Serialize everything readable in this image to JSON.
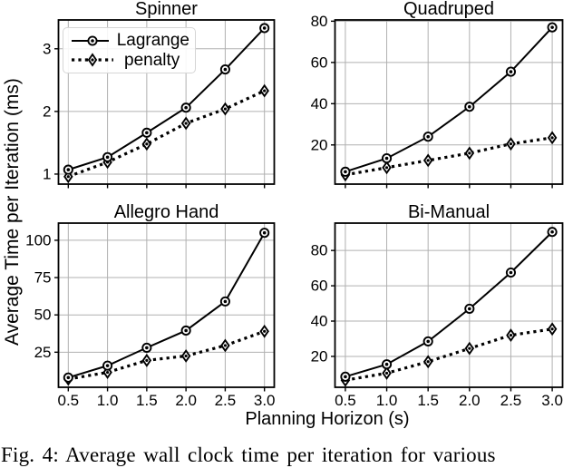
{
  "figure": {
    "ylabel": "Average Time per Iteration (ms)",
    "xlabel": "Planning Horizon (s)",
    "caption": "Fig. 4: Average wall clock time per iteration for various"
  },
  "legend": {
    "position": "upper-left-of-spinner-subplot",
    "entries": [
      {
        "label": "Lagrange",
        "line_style": "solid",
        "marker": "circle"
      },
      {
        "label": "penalty",
        "line_style": "dotted",
        "marker": "thin-diamond"
      }
    ]
  },
  "colors": {
    "line": "#000000",
    "grid": "#b0b0b0",
    "text": "#000000",
    "background": "#ffffff",
    "legend_border": "#d5d5d5",
    "marker_face": "#ffffff"
  },
  "chart_data": [
    {
      "type": "line",
      "title": "Spinner",
      "x": [
        0.5,
        1.0,
        1.5,
        2.0,
        2.5,
        3.0
      ],
      "xticklabels": [
        "0.5",
        "1.0",
        "1.5",
        "2.0",
        "2.5",
        "3.0"
      ],
      "show_xticklabels": false,
      "yticks": [
        1,
        2,
        3
      ],
      "yticklabels": [
        "1",
        "2",
        "3"
      ],
      "xlim": [
        0.375,
        3.125
      ],
      "ylim": [
        0.84,
        3.46
      ],
      "grid": true,
      "series": [
        {
          "name": "Lagrange",
          "values": [
            1.07,
            1.27,
            1.66,
            2.06,
            2.67,
            3.33
          ]
        },
        {
          "name": "penalty",
          "values": [
            0.96,
            1.19,
            1.48,
            1.81,
            2.04,
            2.33
          ]
        }
      ]
    },
    {
      "type": "line",
      "title": "Quadruped",
      "x": [
        0.5,
        1.0,
        1.5,
        2.0,
        2.5,
        3.0
      ],
      "xticklabels": [
        "0.5",
        "1.0",
        "1.5",
        "2.0",
        "2.5",
        "3.0"
      ],
      "show_xticklabels": false,
      "yticks": [
        20,
        40,
        60,
        80
      ],
      "yticklabels": [
        "20",
        "40",
        "60",
        "80"
      ],
      "xlim": [
        0.375,
        3.125
      ],
      "ylim": [
        1.0,
        80.6
      ],
      "grid": true,
      "series": [
        {
          "name": "Lagrange",
          "values": [
            7,
            13.5,
            24,
            38.5,
            55.5,
            77
          ]
        },
        {
          "name": "penalty",
          "values": [
            5.5,
            9,
            12.5,
            16,
            20.5,
            23.5
          ]
        }
      ]
    },
    {
      "type": "line",
      "title": "Allegro Hand",
      "x": [
        0.5,
        1.0,
        1.5,
        2.0,
        2.5,
        3.0
      ],
      "xticklabels": [
        "0.5",
        "1.0",
        "1.5",
        "2.0",
        "2.5",
        "3.0"
      ],
      "show_xticklabels": true,
      "yticks": [
        25,
        50,
        75,
        100
      ],
      "yticklabels": [
        "25",
        "50",
        "75",
        "100"
      ],
      "xlim": [
        0.375,
        3.125
      ],
      "ylim": [
        1.5,
        111.5
      ],
      "grid": true,
      "series": [
        {
          "name": "Lagrange",
          "values": [
            8,
            16,
            28,
            39.5,
            59,
            105
          ]
        },
        {
          "name": "penalty",
          "values": [
            7,
            11.5,
            19.5,
            22.5,
            29.5,
            39
          ]
        }
      ]
    },
    {
      "type": "line",
      "title": "Bi-Manual",
      "x": [
        0.5,
        1.0,
        1.5,
        2.0,
        2.5,
        3.0
      ],
      "xticklabels": [
        "0.5",
        "1.0",
        "1.5",
        "2.0",
        "2.5",
        "3.0"
      ],
      "show_xticklabels": true,
      "yticks": [
        20,
        40,
        60,
        80
      ],
      "yticklabels": [
        "20",
        "40",
        "60",
        "80"
      ],
      "xlim": [
        0.375,
        3.125
      ],
      "ylim": [
        2.5,
        95.5
      ],
      "grid": true,
      "series": [
        {
          "name": "Lagrange",
          "values": [
            8.5,
            15.5,
            28.5,
            47,
            67.5,
            90.5
          ]
        },
        {
          "name": "penalty",
          "values": [
            6.5,
            10.5,
            17,
            24.5,
            32,
            35.5
          ]
        }
      ]
    }
  ]
}
